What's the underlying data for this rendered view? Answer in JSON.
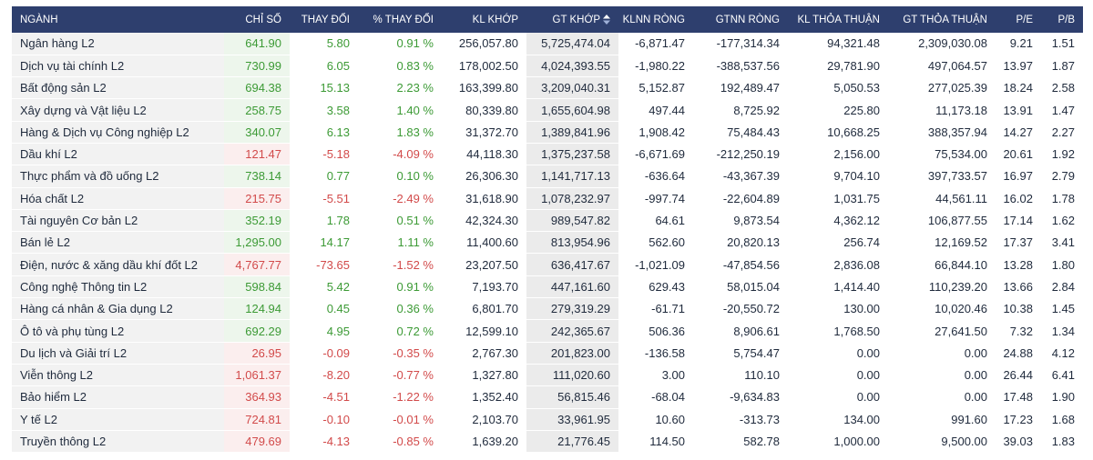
{
  "columns": {
    "nganh": "NGÀNH",
    "chi_so": "CHỈ SỐ",
    "thay_doi": "THAY ĐỔI",
    "pct_thay_doi": "% THAY ĐỔI",
    "kl_khop": "KL KHỚP",
    "gt_khop": "GT KHỚP",
    "klnn_rong": "KLNN RÒNG",
    "gtnn_rong": "GTNN RÒNG",
    "kl_thoa_thuan": "KL THỎA THUẬN",
    "gt_thoa_thuan": "GT THỎA THUẬN",
    "pe": "P/E",
    "pb": "P/B"
  },
  "colors": {
    "header_bg": "#2e3f6e",
    "up": "#3c9a35",
    "down": "#d24a4a"
  },
  "rows": [
    {
      "name": "Ngân hàng L2",
      "dir": "up",
      "chi_so": "641.90",
      "thay_doi": "5.80",
      "pct": "0.91 %",
      "kl_khop": "256,057.80",
      "gt_khop": "5,725,474.04",
      "klnn": "-6,871.47",
      "gtnn": "-177,314.34",
      "kl_tt": "94,321.48",
      "gt_tt": "2,309,030.08",
      "pe": "9.21",
      "pb": "1.51"
    },
    {
      "name": "Dịch vụ tài chính L2",
      "dir": "up",
      "chi_so": "730.99",
      "thay_doi": "6.05",
      "pct": "0.83 %",
      "kl_khop": "178,002.50",
      "gt_khop": "4,024,393.55",
      "klnn": "-1,980.22",
      "gtnn": "-388,537.56",
      "kl_tt": "29,781.90",
      "gt_tt": "497,064.57",
      "pe": "13.97",
      "pb": "1.87"
    },
    {
      "name": "Bất động sản L2",
      "dir": "up",
      "chi_so": "694.38",
      "thay_doi": "15.13",
      "pct": "2.23 %",
      "kl_khop": "163,399.80",
      "gt_khop": "3,209,040.31",
      "klnn": "5,152.87",
      "gtnn": "192,489.47",
      "kl_tt": "5,050.53",
      "gt_tt": "277,025.39",
      "pe": "18.24",
      "pb": "2.58"
    },
    {
      "name": "Xây dựng và Vật liệu L2",
      "dir": "up",
      "chi_so": "258.75",
      "thay_doi": "3.58",
      "pct": "1.40 %",
      "kl_khop": "80,339.80",
      "gt_khop": "1,655,604.98",
      "klnn": "497.44",
      "gtnn": "8,725.92",
      "kl_tt": "225.80",
      "gt_tt": "11,173.18",
      "pe": "13.91",
      "pb": "1.47"
    },
    {
      "name": "Hàng & Dịch vụ Công nghiệp L2",
      "dir": "up",
      "chi_so": "340.07",
      "thay_doi": "6.13",
      "pct": "1.83 %",
      "kl_khop": "31,372.70",
      "gt_khop": "1,389,841.96",
      "klnn": "1,908.42",
      "gtnn": "75,484.43",
      "kl_tt": "10,668.25",
      "gt_tt": "388,357.94",
      "pe": "14.27",
      "pb": "2.27"
    },
    {
      "name": "Dầu khí L2",
      "dir": "down",
      "chi_so": "121.47",
      "thay_doi": "-5.18",
      "pct": "-4.09 %",
      "kl_khop": "44,118.30",
      "gt_khop": "1,375,237.58",
      "klnn": "-6,671.69",
      "gtnn": "-212,250.19",
      "kl_tt": "2,156.00",
      "gt_tt": "75,534.00",
      "pe": "20.61",
      "pb": "1.92"
    },
    {
      "name": "Thực phẩm và đồ uống L2",
      "dir": "up",
      "chi_so": "738.14",
      "thay_doi": "0.77",
      "pct": "0.10 %",
      "kl_khop": "26,306.30",
      "gt_khop": "1,141,717.13",
      "klnn": "-636.64",
      "gtnn": "-43,367.39",
      "kl_tt": "9,704.10",
      "gt_tt": "397,733.57",
      "pe": "16.97",
      "pb": "2.79"
    },
    {
      "name": "Hóa chất L2",
      "dir": "down",
      "chi_so": "215.75",
      "thay_doi": "-5.51",
      "pct": "-2.49 %",
      "kl_khop": "31,618.90",
      "gt_khop": "1,078,232.97",
      "klnn": "-997.74",
      "gtnn": "-22,604.89",
      "kl_tt": "1,031.75",
      "gt_tt": "44,561.11",
      "pe": "16.02",
      "pb": "1.78"
    },
    {
      "name": "Tài nguyên Cơ bản L2",
      "dir": "up",
      "chi_so": "352.19",
      "thay_doi": "1.78",
      "pct": "0.51 %",
      "kl_khop": "42,324.30",
      "gt_khop": "989,547.82",
      "klnn": "64.61",
      "gtnn": "9,873.54",
      "kl_tt": "4,362.12",
      "gt_tt": "106,877.55",
      "pe": "17.14",
      "pb": "1.62"
    },
    {
      "name": "Bán lẻ L2",
      "dir": "up",
      "chi_so": "1,295.00",
      "thay_doi": "14.17",
      "pct": "1.11 %",
      "kl_khop": "11,400.60",
      "gt_khop": "813,954.96",
      "klnn": "562.60",
      "gtnn": "20,820.13",
      "kl_tt": "256.74",
      "gt_tt": "12,169.52",
      "pe": "17.37",
      "pb": "3.41"
    },
    {
      "name": "Điện, nước & xăng dầu khí đốt L2",
      "dir": "down",
      "chi_so": "4,767.77",
      "thay_doi": "-73.65",
      "pct": "-1.52 %",
      "kl_khop": "23,207.50",
      "gt_khop": "636,417.67",
      "klnn": "-1,021.09",
      "gtnn": "-47,854.56",
      "kl_tt": "2,836.08",
      "gt_tt": "66,844.10",
      "pe": "13.28",
      "pb": "1.80"
    },
    {
      "name": "Công nghệ Thông tin L2",
      "dir": "up",
      "chi_so": "598.84",
      "thay_doi": "5.42",
      "pct": "0.91 %",
      "kl_khop": "7,193.70",
      "gt_khop": "447,161.60",
      "klnn": "629.43",
      "gtnn": "58,015.04",
      "kl_tt": "1,414.40",
      "gt_tt": "110,239.20",
      "pe": "13.66",
      "pb": "2.84"
    },
    {
      "name": "Hàng cá nhân & Gia dụng L2",
      "dir": "up",
      "chi_so": "124.94",
      "thay_doi": "0.45",
      "pct": "0.36 %",
      "kl_khop": "6,801.70",
      "gt_khop": "279,319.29",
      "klnn": "-61.71",
      "gtnn": "-20,550.72",
      "kl_tt": "130.00",
      "gt_tt": "10,020.46",
      "pe": "10.38",
      "pb": "1.45"
    },
    {
      "name": "Ô tô và phụ tùng L2",
      "dir": "up",
      "chi_so": "692.29",
      "thay_doi": "4.95",
      "pct": "0.72 %",
      "kl_khop": "12,599.10",
      "gt_khop": "242,365.67",
      "klnn": "506.36",
      "gtnn": "8,906.61",
      "kl_tt": "1,768.50",
      "gt_tt": "27,641.50",
      "pe": "7.32",
      "pb": "1.34"
    },
    {
      "name": "Du lịch và Giải trí L2",
      "dir": "down",
      "chi_so": "26.95",
      "thay_doi": "-0.09",
      "pct": "-0.35 %",
      "kl_khop": "2,767.30",
      "gt_khop": "201,823.00",
      "klnn": "-136.58",
      "gtnn": "5,754.47",
      "kl_tt": "0.00",
      "gt_tt": "0.00",
      "pe": "24.88",
      "pb": "4.12"
    },
    {
      "name": "Viễn thông L2",
      "dir": "down",
      "chi_so": "1,061.37",
      "thay_doi": "-8.20",
      "pct": "-0.77 %",
      "kl_khop": "1,327.80",
      "gt_khop": "111,020.60",
      "klnn": "3.00",
      "gtnn": "110.10",
      "kl_tt": "0.00",
      "gt_tt": "0.00",
      "pe": "26.44",
      "pb": "6.41"
    },
    {
      "name": "Bảo hiểm L2",
      "dir": "down",
      "chi_so": "364.93",
      "thay_doi": "-4.51",
      "pct": "-1.22 %",
      "kl_khop": "1,352.40",
      "gt_khop": "56,815.46",
      "klnn": "-68.04",
      "gtnn": "-9,634.83",
      "kl_tt": "0.00",
      "gt_tt": "0.00",
      "pe": "17.48",
      "pb": "1.90"
    },
    {
      "name": "Y tế L2",
      "dir": "down",
      "chi_so": "724.81",
      "thay_doi": "-0.10",
      "pct": "-0.01 %",
      "kl_khop": "2,103.70",
      "gt_khop": "33,961.95",
      "klnn": "10.60",
      "gtnn": "-313.73",
      "kl_tt": "134.00",
      "gt_tt": "991.60",
      "pe": "17.23",
      "pb": "1.68"
    },
    {
      "name": "Truyền thông L2",
      "dir": "down",
      "chi_so": "479.69",
      "thay_doi": "-4.13",
      "pct": "-0.85 %",
      "kl_khop": "1,639.20",
      "gt_khop": "21,776.45",
      "klnn": "114.50",
      "gtnn": "582.78",
      "kl_tt": "1,000.00",
      "gt_tt": "9,500.00",
      "pe": "39.03",
      "pb": "1.83"
    }
  ]
}
